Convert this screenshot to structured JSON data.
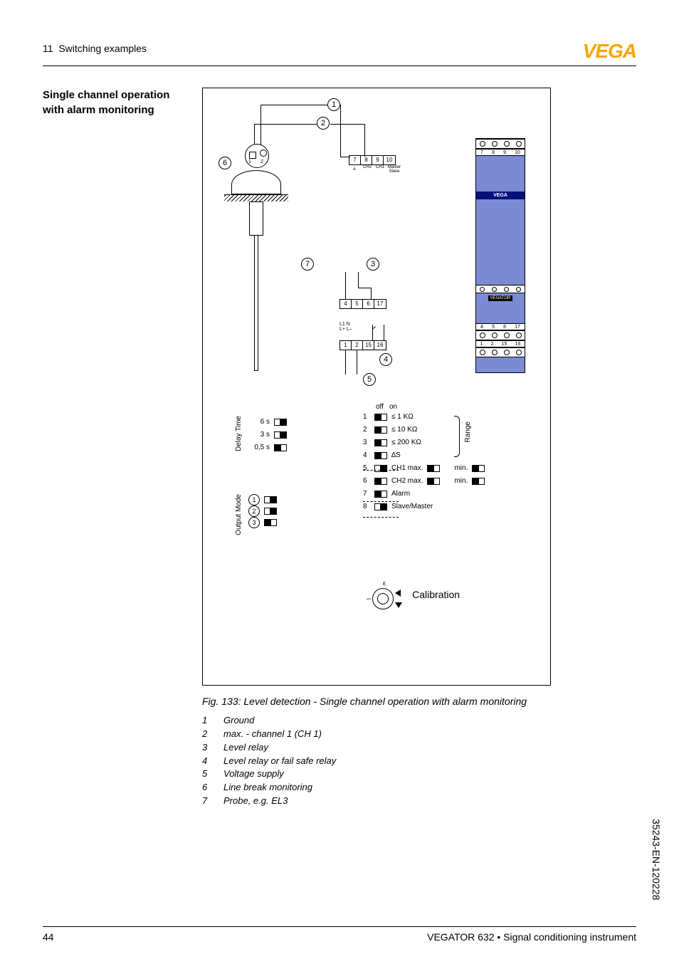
{
  "header": {
    "chapter_num": "11",
    "chapter_title": "Switching examples"
  },
  "brand": "VEGA",
  "sidelabel": "Single channel operation with alarm monitoring",
  "figure": {
    "caption": "Fig. 133: Level detection - Single channel operation with alarm monitoring",
    "callouts": {
      "c1": "1",
      "c2": "2",
      "c3": "3",
      "c4": "4",
      "c5": "5",
      "c6": "6",
      "c7": "7"
    },
    "terminals": {
      "top": [
        "7",
        "8",
        "9",
        "10"
      ],
      "top_lbls": [
        "",
        "CH2",
        "CH1",
        "Master Slave"
      ],
      "mid": [
        "4",
        "5",
        "6",
        "17"
      ],
      "bot": [
        "1",
        "2",
        "15",
        "16"
      ],
      "ln": "L1   N",
      "lpm": "L+  L–"
    },
    "module_numbers_top": [
      "7",
      "8",
      "9",
      "10"
    ],
    "module_numbers_mid": [
      "4",
      "5",
      "6",
      "17"
    ],
    "module_numbers_bot": [
      "1",
      "2",
      "15",
      "16"
    ],
    "module_brand": "VEGA",
    "module_label": "VEGATOR",
    "delay": {
      "title": "Delay Time",
      "rows": [
        {
          "label": "6 s",
          "state": "on"
        },
        {
          "label": "3 s",
          "state": "on"
        },
        {
          "label": "0,5 s",
          "state": "off"
        }
      ]
    },
    "output_mode": {
      "title": "Output Mode",
      "rows": [
        {
          "num": "1",
          "state": "on"
        },
        {
          "num": "2",
          "state": "on"
        },
        {
          "num": "3",
          "state": "off"
        }
      ]
    },
    "dip": {
      "header_off": "off",
      "header_on": "on",
      "rows": [
        {
          "n": "1",
          "state": "off",
          "text": "≤ 1 KΩ"
        },
        {
          "n": "2",
          "state": "off",
          "text": "≤ 10 KΩ"
        },
        {
          "n": "3",
          "state": "off",
          "text": "≤ 200 KΩ"
        },
        {
          "n": "4",
          "state": "off",
          "text": "∆S"
        },
        {
          "n": "5",
          "state": "on",
          "text": "CH1  max.",
          "extra_max": "off",
          "extra_min_label": "min.",
          "extra_min": "rev"
        },
        {
          "n": "6",
          "state": "off",
          "text": "CH2  max.",
          "extra_max": "off",
          "extra_min_label": "min.",
          "extra_min": "rev"
        },
        {
          "n": "7",
          "state": "off",
          "text": "Alarm"
        },
        {
          "n": "8",
          "state": "on",
          "text": "Slave/Master"
        }
      ],
      "range_label": "Range"
    },
    "calibration_label": "Calibration",
    "ground_sym": "⏚"
  },
  "legend": [
    {
      "n": "1",
      "t": "Ground"
    },
    {
      "n": "2",
      "t": "max. - channel 1 (CH 1)"
    },
    {
      "n": "3",
      "t": "Level relay"
    },
    {
      "n": "4",
      "t": "Level relay or fail safe relay"
    },
    {
      "n": "5",
      "t": "Voltage supply"
    },
    {
      "n": "6",
      "t": "Line break monitoring"
    },
    {
      "n": "7",
      "t": "Probe, e.g. EL3"
    }
  ],
  "footer": {
    "page": "44",
    "title": "VEGATOR 632 • Signal conditioning instrument"
  },
  "doc_code": "35243-EN-120228"
}
